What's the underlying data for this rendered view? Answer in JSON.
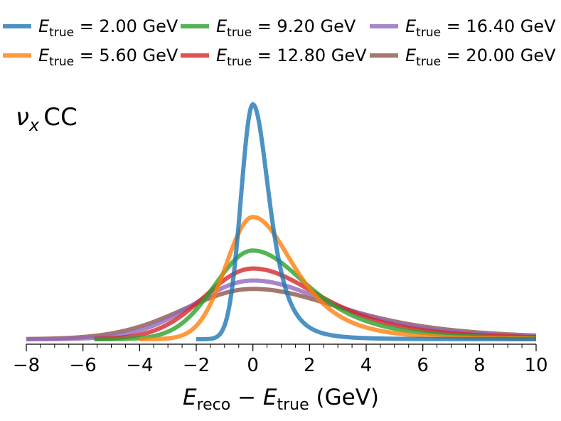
{
  "chart_data": {
    "type": "line",
    "title": "",
    "annotation": {
      "symbol": "ν",
      "subscript": "x",
      "text": "CC"
    },
    "xlabel": {
      "var1": "E",
      "sub1": "reco",
      "op": " − ",
      "var2": "E",
      "sub2": "true",
      "unit": " (GeV)"
    },
    "ylabel": "",
    "xlim": [
      -8,
      10
    ],
    "ylim": [
      0,
      1.0
    ],
    "xticks": [
      -8,
      -6,
      -4,
      -2,
      0,
      2,
      4,
      6,
      8,
      10
    ],
    "xtick_labels": [
      "−8",
      "−6",
      "−4",
      "−2",
      "0",
      "2",
      "4",
      "6",
      "8",
      "10"
    ],
    "minor_tick_step": 0.5,
    "legend_position": "top",
    "series": [
      {
        "name": "E_true = 2.00 GeV",
        "label_var": "E",
        "label_sub": "true",
        "label_value": " = 2.00 GeV",
        "color": "#1f77b4",
        "x_start": -2.0,
        "peak": 0.98,
        "sigma_left": 0.42,
        "sigma_right": 0.62
      },
      {
        "name": "E_true = 5.60 GeV",
        "label_var": "E",
        "label_sub": "true",
        "label_value": " = 5.60 GeV",
        "color": "#ff7f0e",
        "x_start": -4.0,
        "peak": 0.51,
        "sigma_left": 0.95,
        "sigma_right": 1.55
      },
      {
        "name": "E_true = 9.20 GeV",
        "label_var": "E",
        "label_sub": "true",
        "label_value": " = 9.20 GeV",
        "color": "#2ca02c",
        "x_start": -5.6,
        "peak": 0.37,
        "sigma_left": 1.35,
        "sigma_right": 2.1
      },
      {
        "name": "E_true = 12.80 GeV",
        "label_var": "E",
        "label_sub": "true",
        "label_value": " = 12.80 GeV",
        "color": "#d62728",
        "x_start": -5.6,
        "peak": 0.295,
        "sigma_left": 1.7,
        "sigma_right": 2.6
      },
      {
        "name": "E_true = 16.40 GeV",
        "label_var": "E",
        "label_sub": "true",
        "label_value": " = 16.40 GeV",
        "color": "#9467bd",
        "x_start": -8.0,
        "peak": 0.245,
        "sigma_left": 2.05,
        "sigma_right": 3.05
      },
      {
        "name": "E_true = 20.00 GeV",
        "label_var": "E",
        "label_sub": "true",
        "label_value": " = 20.00 GeV",
        "color": "#8c564b",
        "x_start": -8.0,
        "peak": 0.21,
        "sigma_left": 2.4,
        "sigma_right": 3.5
      }
    ]
  }
}
